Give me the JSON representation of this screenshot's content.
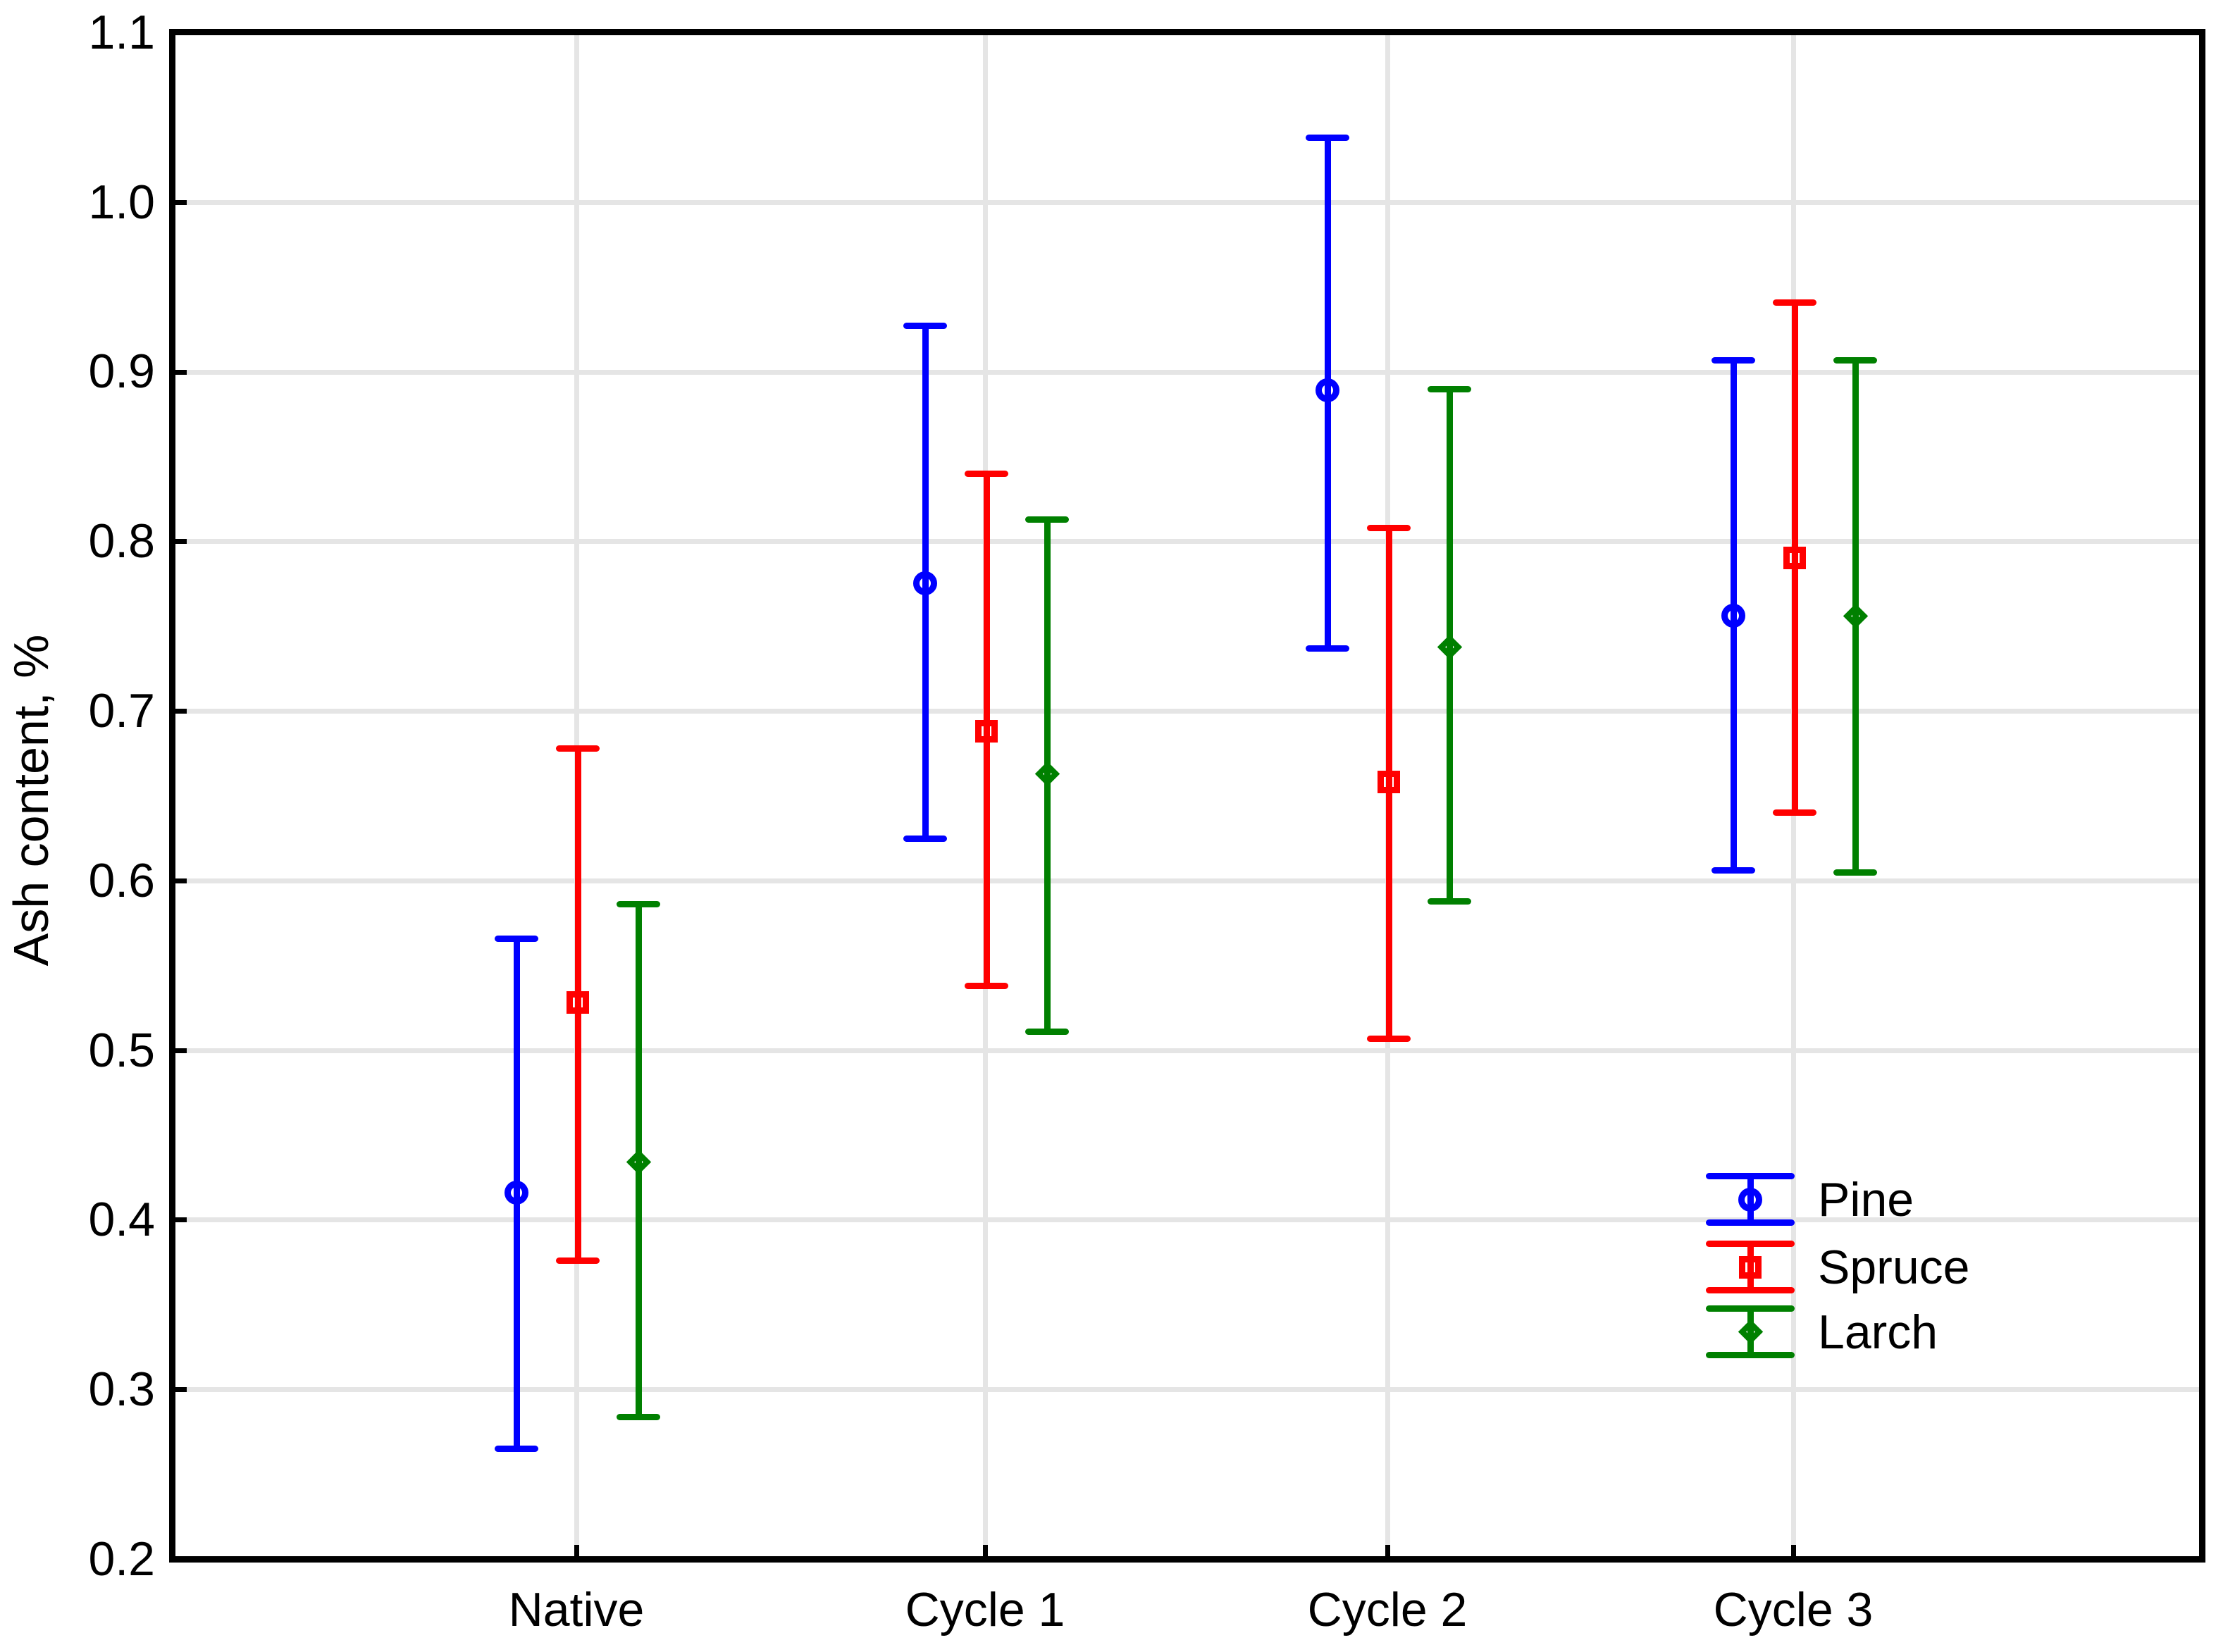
{
  "chart_data": {
    "type": "errorbar",
    "title": "",
    "ylabel": "Ash content, %",
    "xlabel": "",
    "categories": [
      "Native",
      "Cycle 1",
      "Cycle 2",
      "Cycle 3"
    ],
    "y_axis": {
      "min": 0.2,
      "max": 1.1,
      "tick_step": 0.1,
      "tick_labels": [
        "1.1",
        "1.0",
        "0.9",
        "0.8",
        "0.7",
        "0.6",
        "0.5",
        "0.4",
        "0.3",
        "0.2"
      ],
      "gridline_values": [
        1.0,
        0.9,
        0.8,
        0.7,
        0.6,
        0.5,
        0.4,
        0.3
      ]
    },
    "grid": true,
    "gridline_color": "#e5e5e5",
    "axis_color": "#000000",
    "legend": {
      "position": "bottom-right",
      "items": [
        "Pine",
        "Spruce",
        "Larch"
      ]
    },
    "series": [
      {
        "name": "Pine",
        "color": "#0000ff",
        "marker": "circle",
        "values": [
          0.416,
          0.775,
          0.889,
          0.756
        ],
        "upper": [
          0.566,
          0.927,
          1.038,
          0.907
        ],
        "lower": [
          0.265,
          0.625,
          0.737,
          0.606
        ]
      },
      {
        "name": "Spruce",
        "color": "#ff0000",
        "marker": "square",
        "values": [
          0.528,
          0.688,
          0.658,
          0.79
        ],
        "upper": [
          0.678,
          0.84,
          0.808,
          0.941
        ],
        "lower": [
          0.376,
          0.538,
          0.507,
          0.64
        ]
      },
      {
        "name": "Larch",
        "color": "#008000",
        "marker": "diamond",
        "values": [
          0.434,
          0.663,
          0.738,
          0.756
        ],
        "upper": [
          0.586,
          0.813,
          0.89,
          0.907
        ],
        "lower": [
          0.284,
          0.511,
          0.588,
          0.605
        ]
      }
    ]
  }
}
